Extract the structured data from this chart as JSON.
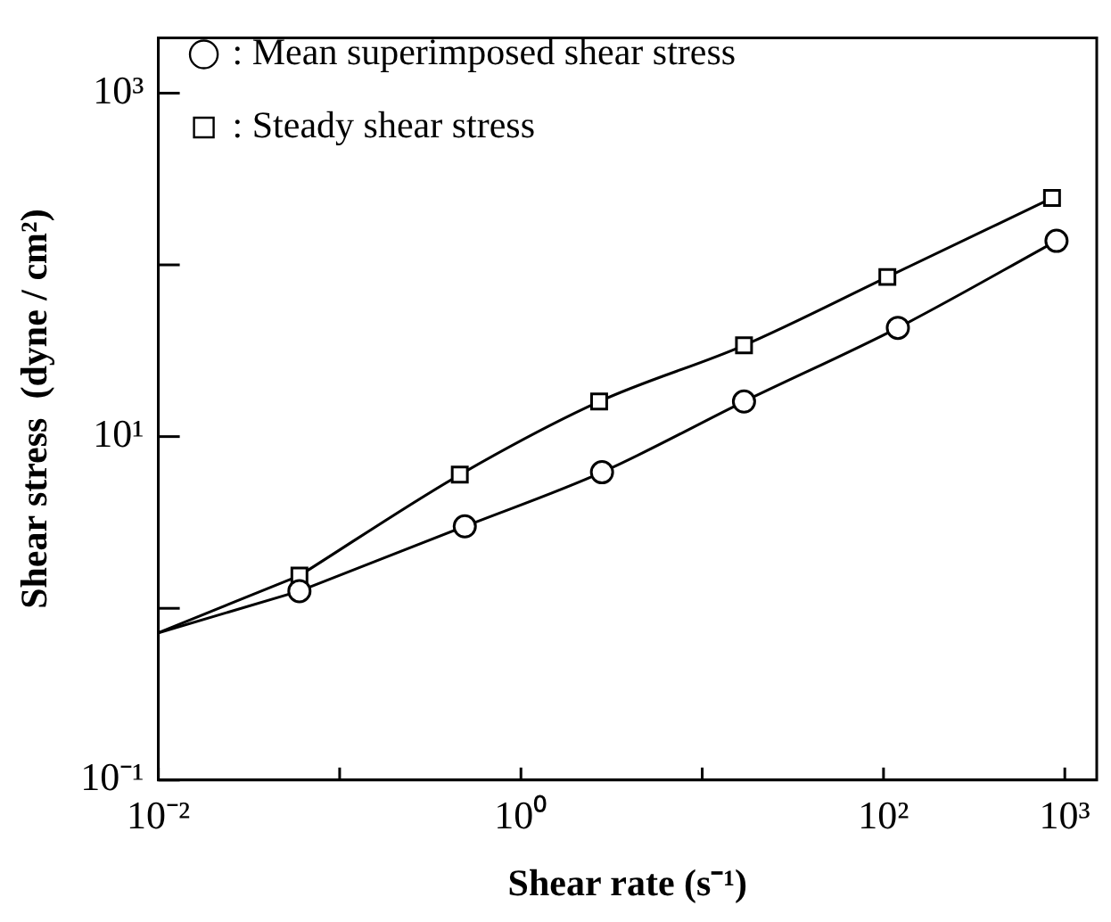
{
  "chart_data": {
    "type": "line",
    "xlabel": "Shear rate (s⁻¹)",
    "ylabel": "Shear stress  (dyne / cm²)",
    "log": "xy",
    "grid": false,
    "legend": "top left",
    "line_style": "solid",
    "xlim": [
      0.01,
      1500
    ],
    "ylim": [
      0.1,
      2100
    ],
    "xticks": [
      {
        "value": 0.01,
        "label": "10⁻²"
      },
      {
        "value": 0.1,
        "label": null
      },
      {
        "value": 1,
        "label": "10⁰"
      },
      {
        "value": 10,
        "label": null
      },
      {
        "value": 100,
        "label": "10²"
      },
      {
        "value": 1000,
        "label": "10³"
      }
    ],
    "yticks": [
      {
        "value": 0.1,
        "label": "10⁻¹"
      },
      {
        "value": 1,
        "label": null
      },
      {
        "value": 10,
        "label": "10¹"
      },
      {
        "value": 100,
        "label": null
      },
      {
        "value": 1000,
        "label": "10³"
      }
    ],
    "series": [
      {
        "name": ": Mean superimposed shear stress",
        "color": "#000000",
        "marker": "circle",
        "x": [
          0.06,
          0.49,
          2.8,
          17,
          120,
          900
        ],
        "values": [
          1.26,
          3.0,
          6.2,
          16,
          43,
          138
        ]
      },
      {
        "name": ": Steady shear stress",
        "color": "#000000",
        "marker": "square",
        "x": [
          0.06,
          0.46,
          2.7,
          17,
          105,
          850
        ],
        "values": [
          1.55,
          6.0,
          16,
          34,
          85,
          245
        ]
      },
      {
        "color": "#000000",
        "marker": "none",
        "x": [
          0.01,
          0.06
        ],
        "values": [
          0.72,
          1.26
        ]
      },
      {
        "color": "#000000",
        "marker": "none",
        "x": [
          0.01,
          0.06
        ],
        "values": [
          0.72,
          1.55
        ]
      }
    ]
  }
}
